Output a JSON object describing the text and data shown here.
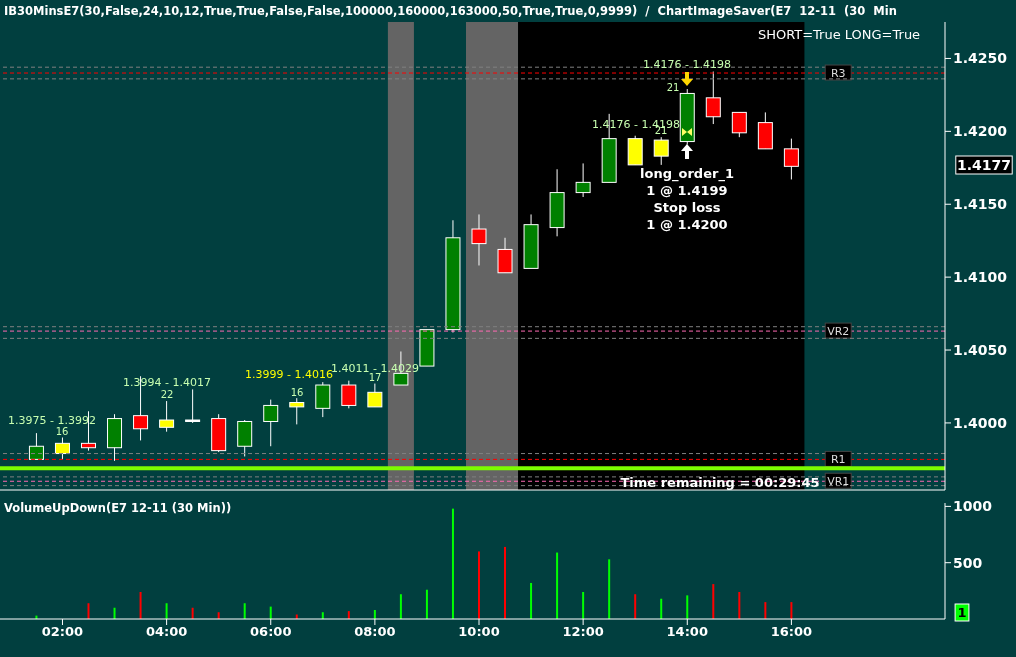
{
  "chart_data": [
    {
      "type": "candlestick",
      "title": "IB30MinsE7(30,False,24,10,12,True,True,False,False,100000,160000,163000,50,True,True,0,9999)  /  ChartImageSaver(E7  12-11  (30  Min",
      "x": [
        1.5,
        2,
        2.5,
        3,
        3.5,
        4,
        4.5,
        5,
        5.5,
        6,
        6.5,
        7,
        7.5,
        8,
        8.5,
        9,
        9.5,
        10,
        10.5,
        11,
        11.5,
        12,
        12.5,
        13,
        13.5,
        14,
        14.5,
        15,
        15.5,
        16
      ],
      "ohlc": [
        [
          1.3975,
          1.3993,
          1.3975,
          1.3984
        ],
        [
          1.3986,
          1.399,
          1.3975,
          1.3979
        ],
        [
          1.3986,
          1.4008,
          1.3981,
          1.3983
        ],
        [
          1.3983,
          1.4006,
          1.3974,
          1.4003
        ],
        [
          1.4005,
          1.4032,
          1.3988,
          1.3996
        ],
        [
          1.4002,
          1.4015,
          1.3994,
          1.3997
        ],
        [
          1.4002,
          1.4023,
          1.4,
          1.4001
        ],
        [
          1.4003,
          1.4006,
          1.398,
          1.3981
        ],
        [
          1.3984,
          1.4002,
          1.3977,
          1.4001
        ],
        [
          1.4001,
          1.4016,
          1.3984,
          1.4012
        ],
        [
          1.4014,
          1.4017,
          1.3999,
          1.4011
        ],
        [
          1.401,
          1.4028,
          1.4004,
          1.4026
        ],
        [
          1.4026,
          1.4029,
          1.401,
          1.4012
        ],
        [
          1.4021,
          1.4027,
          1.4011,
          1.4011
        ],
        [
          1.4026,
          1.4049,
          1.4026,
          1.4034
        ],
        [
          1.4039,
          1.4064,
          1.4039,
          1.4064
        ],
        [
          1.4064,
          1.4139,
          1.4062,
          1.4127
        ],
        [
          1.4133,
          1.4143,
          1.4108,
          1.4123
        ],
        [
          1.4119,
          1.4127,
          1.4103,
          1.4103
        ],
        [
          1.4106,
          1.4143,
          1.4106,
          1.4136
        ],
        [
          1.4134,
          1.4174,
          1.4128,
          1.4158
        ],
        [
          1.4158,
          1.4178,
          1.4155,
          1.4165
        ],
        [
          1.4165,
          1.4212,
          1.4165,
          1.4195
        ],
        [
          1.4195,
          1.4197,
          1.4177,
          1.4177
        ],
        [
          1.4194,
          1.4196,
          1.4177,
          1.4183
        ],
        [
          1.4193,
          1.4229,
          1.4191,
          1.4226
        ],
        [
          1.4223,
          1.4241,
          1.4205,
          1.421
        ],
        [
          1.4213,
          1.4213,
          1.4196,
          1.4199
        ],
        [
          1.4206,
          1.4213,
          1.4188,
          1.4188
        ],
        [
          1.4188,
          1.4195,
          1.4167,
          1.4176
        ]
      ],
      "colors": [
        "#008000",
        "#ffff00",
        "#ff0000",
        "#008000",
        "#ff0000",
        "#ffff00",
        "#ffffff",
        "#ff0000",
        "#008000",
        "#008000",
        "#ffff00",
        "#008000",
        "#ff0000",
        "#ffff00",
        "#008000",
        "#008000",
        "#008000",
        "#ff0000",
        "#ff0000",
        "#008000",
        "#008000",
        "#008000",
        "#008000",
        "#ffff00",
        "#ffff00",
        "#008000",
        "#ff0000",
        "#ff0000",
        "#ff0000",
        "#ff0000"
      ],
      "xlim": [
        0.8,
        18.95
      ],
      "ylim": [
        1.3954,
        1.4275
      ],
      "yticks": [
        {
          "value": 1.4,
          "label": "1.4000"
        },
        {
          "value": 1.405,
          "label": "1.4050"
        },
        {
          "value": 1.41,
          "label": "1.4100"
        },
        {
          "value": 1.415,
          "label": "1.4150"
        },
        {
          "value": 1.42,
          "label": "1.4200"
        },
        {
          "value": 1.425,
          "label": "1.4250"
        }
      ],
      "tick_labels": "y",
      "bands": [
        {
          "axis": "x",
          "from": 8.25,
          "to": 8.75,
          "color": "#646464"
        },
        {
          "axis": "x",
          "from": 9.75,
          "to": 10.75,
          "color": "#646464"
        },
        {
          "axis": "x",
          "from": 10.75,
          "to": 16.25,
          "color": "#000000"
        }
      ],
      "ref_lines": [
        {
          "axis": "y",
          "value": 1.4244,
          "color": "#808080",
          "line_style": "dashed"
        },
        {
          "axis": "y",
          "value": 1.424,
          "label": "R3",
          "color": "#ff0000",
          "line_style": "dashed"
        },
        {
          "axis": "y",
          "value": 1.4236,
          "color": "#808080",
          "line_style": "dashed"
        },
        {
          "axis": "y",
          "value": 1.4066,
          "color": "#808080",
          "line_style": "dashed"
        },
        {
          "axis": "y",
          "value": 1.4063,
          "label": "VR2",
          "color": "#ff69b4",
          "line_style": "dashed"
        },
        {
          "axis": "y",
          "value": 1.4058,
          "color": "#808080",
          "line_style": "dashed"
        },
        {
          "axis": "y",
          "value": 1.3979,
          "color": "#808080",
          "line_style": "dashed"
        },
        {
          "axis": "y",
          "value": 1.3975,
          "label": "R1",
          "color": "#ff0000",
          "line_style": "dashed"
        },
        {
          "axis": "y",
          "value": 1.3969,
          "color": "#7cfc00",
          "line_style": "solid"
        },
        {
          "axis": "y",
          "value": 1.3963,
          "color": "#808080",
          "line_style": "dashed"
        },
        {
          "axis": "y",
          "value": 1.396,
          "label": "VR1",
          "color": "#ff69b4",
          "line_style": "dashed"
        },
        {
          "axis": "y",
          "value": 1.3957,
          "color": "#808080",
          "line_style": "dashed"
        }
      ],
      "annotations": [
        "SHORT=True LONG=True",
        "Time remaining = 00:29:45",
        "1.4177",
        "1.3975 - 1.3992",
        "1.3994 - 1.4017",
        "1.3999 - 1.4016",
        "1.4011 - 1.4029",
        "1.4176 - 1.4198",
        "1.4176 - 1.4198",
        "long_order_1",
        "1 @ 1.4199",
        "Stop loss",
        "1 @ 1.4200",
        "16",
        "22",
        "16",
        "17",
        "21",
        "21"
      ]
    },
    {
      "type": "bar",
      "title": "VolumeUpDown(E7 12-11 (30 Min))",
      "x": [
        1.5,
        2,
        2.5,
        3,
        3.5,
        4,
        4.5,
        5,
        5.5,
        6,
        6.5,
        7,
        7.5,
        8,
        8.5,
        9,
        9.5,
        10,
        10.5,
        11,
        11.5,
        12,
        12.5,
        13,
        13.5,
        14,
        14.5,
        15,
        15.5,
        16
      ],
      "values": [
        30,
        null,
        140,
        100,
        240,
        140,
        100,
        60,
        140,
        110,
        40,
        60,
        70,
        80,
        220,
        260,
        980,
        600,
        640,
        320,
        590,
        240,
        530,
        220,
        180,
        210,
        310,
        240,
        150,
        150
      ],
      "colors": [
        "#00ff00",
        "#00ff00",
        "#ff0000",
        "#00ff00",
        "#ff0000",
        "#00ff00",
        "#ff0000",
        "#ff0000",
        "#00ff00",
        "#00ff00",
        "#ff0000",
        "#00ff00",
        "#ff0000",
        "#00ff00",
        "#00ff00",
        "#00ff00",
        "#00ff00",
        "#ff0000",
        "#ff0000",
        "#00ff00",
        "#00ff00",
        "#00ff00",
        "#00ff00",
        "#ff0000",
        "#00ff00",
        "#00ff00",
        "#ff0000",
        "#ff0000",
        "#ff0000",
        "#ff0000"
      ],
      "xlim": [
        0.8,
        18.95
      ],
      "xticks": [
        {
          "value": 2,
          "label": "02:00"
        },
        {
          "value": 4,
          "label": "04:00"
        },
        {
          "value": 6,
          "label": "06:00"
        },
        {
          "value": 8,
          "label": "08:00"
        },
        {
          "value": 10,
          "label": "10:00"
        },
        {
          "value": 12,
          "label": "12:00"
        },
        {
          "value": 14,
          "label": "14:00"
        },
        {
          "value": 16,
          "label": "16:00"
        }
      ],
      "ylim": [
        0,
        1030
      ],
      "yticks": [
        500,
        1000
      ],
      "annotations": [
        "1"
      ]
    }
  ]
}
